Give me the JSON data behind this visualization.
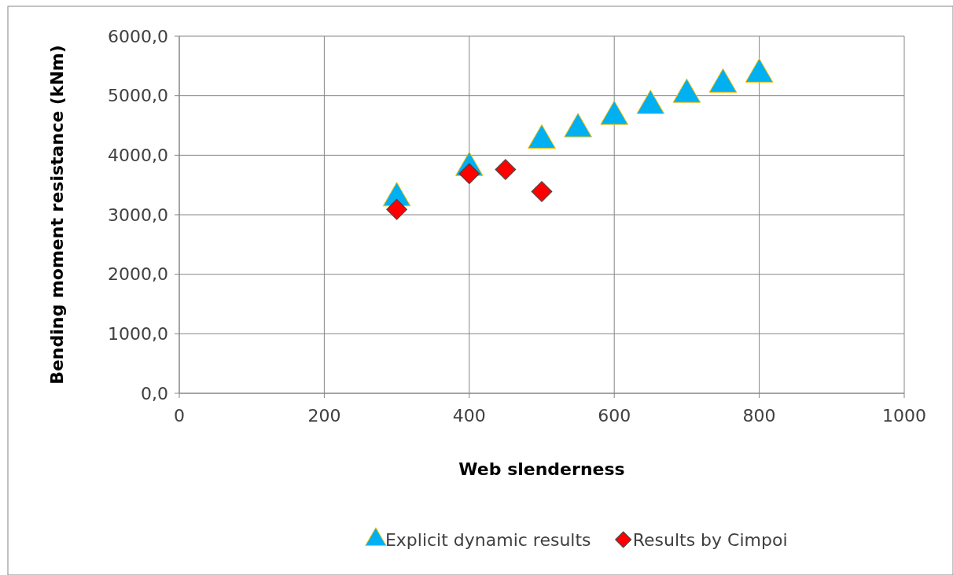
{
  "chart_data": {
    "type": "scatter",
    "xlabel": "Web slenderness",
    "ylabel": "Bending moment resistance (kNm)",
    "xlim": [
      0,
      1000
    ],
    "xticks": [
      0,
      200,
      400,
      600,
      800,
      1000
    ],
    "ylim": [
      0,
      6000
    ],
    "yticks": [
      {
        "value": 0,
        "label": "0,0"
      },
      {
        "value": 1000,
        "label": "1000,0"
      },
      {
        "value": 2000,
        "label": "2000,0"
      },
      {
        "value": 3000,
        "label": "3000,0"
      },
      {
        "value": 4000,
        "label": "4000,0"
      },
      {
        "value": 5000,
        "label": "5000,0"
      },
      {
        "value": 6000,
        "label": "6000,0"
      }
    ],
    "grid": true,
    "legend": "bottom",
    "series": [
      {
        "name": "Explicit dynamic results",
        "color": "#00b0f0",
        "marker": "triangle",
        "x": [
          300,
          400,
          500,
          550,
          600,
          650,
          700,
          750,
          800
        ],
        "values": [
          3280,
          3790,
          4250,
          4440,
          4650,
          4830,
          5020,
          5190,
          5360
        ]
      },
      {
        "name": "Results by Cimpoi",
        "color": "#ff0000",
        "marker": "diamond",
        "x": [
          300,
          400,
          450,
          500
        ],
        "values": [
          3090,
          3690,
          3760,
          3390
        ]
      }
    ]
  }
}
